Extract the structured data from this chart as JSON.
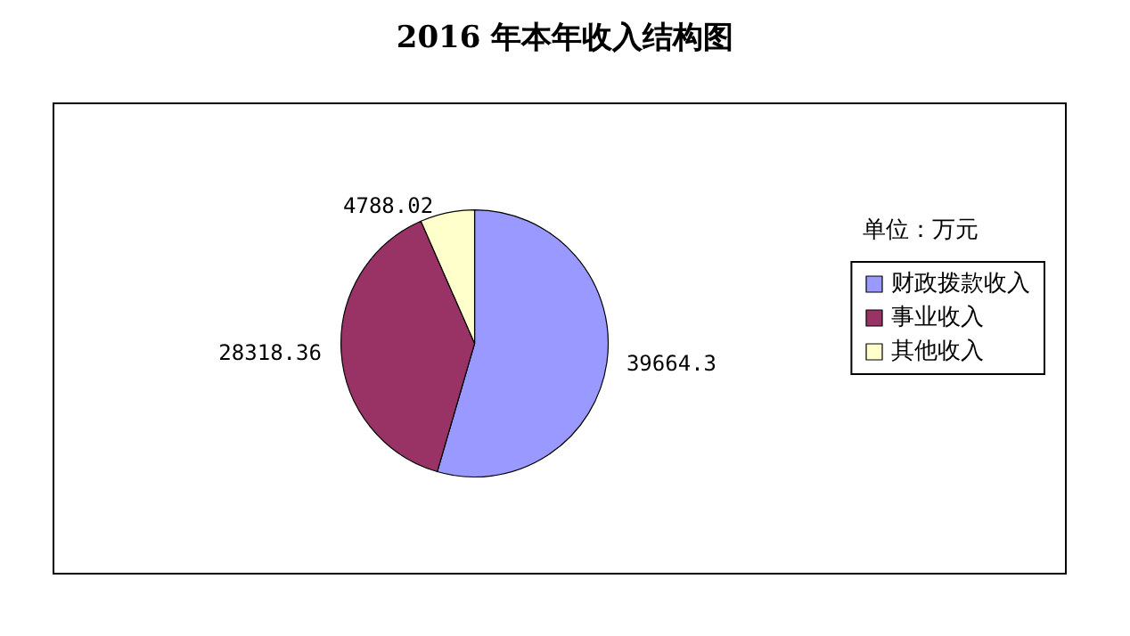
{
  "chart_data": {
    "type": "pie",
    "title": "2016 年本年收入结构图",
    "categories": [
      "财政拨款收入",
      "事业收入",
      "其他收入"
    ],
    "values": [
      39664.3,
      28318.36,
      4788.02
    ],
    "colors": [
      "#9999ff",
      "#993366",
      "#ffffcc"
    ],
    "data_labels": true,
    "legend": "right",
    "annotations": [
      "单位：万元"
    ]
  }
}
